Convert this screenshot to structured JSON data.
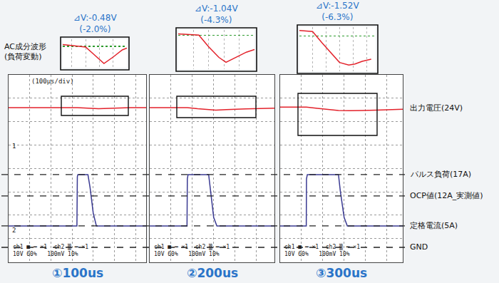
{
  "inset_caption": [
    "AC成分波形",
    "(負荷変動)"
  ],
  "voltage_label": {
    "text": "出力電圧(24V)",
    "value": 24
  },
  "reference_lines": [
    {
      "label": "パルス負荷(17A)",
      "value": 17
    },
    {
      "label": "OCP値(12A_実測値)",
      "value": 12
    },
    {
      "label": "定格電流(5A)",
      "value": 5
    },
    {
      "label": "GND",
      "value": 0
    }
  ],
  "chart_data": [
    {
      "type": "line",
      "title": "①100us",
      "header": "(100μs/div)",
      "channel_markers": [
        "1",
        "2"
      ],
      "footer": [
        "ch1 ■ ━ ×1  ch2 ▒ ━ ×1",
        "10V 60%   100mV 10%"
      ],
      "xlim": [
        0,
        1300
      ],
      "xticks": [
        0,
        200,
        400,
        600,
        800,
        1000,
        1200
      ],
      "ylim": [
        -3.5,
        40.3
      ],
      "yticks": [
        2.0,
        7.5,
        12.9,
        18.4,
        23.9,
        29.4,
        34.9
      ],
      "y2lim": [
        -42,
        38
      ],
      "tick_labels": false,
      "grid": true,
      "series": [
        {
          "color": "#e3222b",
          "axis": "y2",
          "x": [
            0,
            400,
            550,
            650,
            750,
            850,
            950,
            1050,
            1150,
            1300
          ],
          "values": [
            24.0,
            24.05,
            24.0,
            23.98,
            23.75,
            23.52,
            23.7,
            23.9,
            24.0,
            24.0
          ]
        },
        {
          "color": "#3a3a92",
          "x": [
            0,
            646,
            650,
            655,
            750,
            770,
            800,
            830,
            1300
          ],
          "values": [
            5,
            5,
            16.5,
            17,
            17,
            14,
            8,
            5,
            5
          ]
        }
      ],
      "inset": {
        "title": [
          "⊿V:-0.48V",
          "(-2.0%)"
        ],
        "color": "#e3222b",
        "xlim": [
          400,
          1100
        ],
        "xticks": [
          500,
          650,
          800,
          950
        ],
        "ylim": [
          -0.6,
          0.2
        ],
        "yticks": [
          0
        ],
        "x": [
          400,
          550,
          650,
          750,
          850,
          950,
          1050,
          1100
        ],
        "values": [
          0.05,
          0,
          -0.02,
          -0.25,
          -0.48,
          -0.3,
          -0.1,
          -0.05
        ]
      }
    },
    {
      "type": "line",
      "title": "②200us",
      "footer": [
        "ch1 ■ ━ ×1  ch2 ▒ ━ ×1",
        "10V 60%   100mV 10%"
      ],
      "xlim": [
        0,
        1170
      ],
      "xticks": [
        0,
        200,
        400,
        600,
        800,
        1000
      ],
      "ylim": [
        -3.5,
        40.3
      ],
      "yticks": [
        2.0,
        7.5,
        12.9,
        18.4,
        23.9,
        29.4,
        34.9
      ],
      "y2lim": [
        -42,
        38
      ],
      "tick_labels": false,
      "grid": true,
      "series": [
        {
          "color": "#e3222b",
          "axis": "y2",
          "x": [
            0,
            150,
            250,
            353,
            450,
            550,
            620,
            720,
            820,
            900,
            1170
          ],
          "values": [
            24.0,
            24.05,
            24.02,
            24.0,
            23.55,
            23.15,
            22.96,
            23.15,
            23.35,
            23.45,
            23.8
          ]
        },
        {
          "color": "#3a3a92",
          "x": [
            0,
            350,
            353,
            360,
            553,
            570,
            600,
            630,
            1170
          ],
          "values": [
            5,
            5,
            16,
            17,
            17,
            13,
            7,
            5,
            5
          ]
        }
      ],
      "inset": {
        "title": [
          "⊿V:-1.04V",
          "(-4.3%)"
        ],
        "color": "#e3222b",
        "xlim": [
          150,
          900
        ],
        "xticks": [
          300,
          450,
          600,
          750
        ],
        "ylim": [
          -1.3,
          0.2
        ],
        "yticks": [
          0
        ],
        "x": [
          150,
          250,
          353,
          450,
          550,
          620,
          720,
          820,
          900
        ],
        "values": [
          0.05,
          0.02,
          0,
          -0.45,
          -0.85,
          -1.04,
          -0.85,
          -0.65,
          -0.55
        ]
      }
    },
    {
      "type": "line",
      "title": "③300us",
      "footer": [
        "ch1 ■ ━ ×1  ch2 ▒ ━ ×1",
        "10V 60%   100mV 10%"
      ],
      "xlim": [
        0,
        1150
      ],
      "xticks": [
        0,
        200,
        400,
        600,
        800,
        1000
      ],
      "ylim": [
        -3.5,
        40.3
      ],
      "yticks": [
        2.0,
        7.5,
        12.9,
        18.4,
        23.9,
        29.4,
        34.9
      ],
      "y2lim": [
        -42,
        38
      ],
      "tick_labels": false,
      "grid": true,
      "series": [
        {
          "color": "#e3222b",
          "axis": "y2",
          "x": [
            0,
            100,
            247,
            350,
            450,
            547,
            650,
            720,
            800,
            900,
            1150
          ],
          "values": [
            24.25,
            24.25,
            24.2,
            23.7,
            23.25,
            22.8,
            22.68,
            22.73,
            22.85,
            22.95,
            23.3
          ]
        },
        {
          "color": "#3a3a92",
          "x": [
            0,
            245,
            247,
            255,
            547,
            565,
            600,
            630,
            1150
          ],
          "values": [
            5,
            5,
            16,
            17,
            17,
            13,
            7,
            5,
            5
          ]
        }
      ],
      "inset": {
        "title": [
          "⊿V:-1.52V",
          "(-6.3%)"
        ],
        "color": "#e3222b",
        "xlim": [
          100,
          950
        ],
        "xticks": [
          250,
          400,
          550,
          700,
          850
        ],
        "ylim": [
          -1.6,
          0.4
        ],
        "yticks": [
          0
        ],
        "x": [
          100,
          200,
          247,
          350,
          450,
          547,
          650,
          720,
          800,
          900
        ],
        "values": [
          0.25,
          0.22,
          0.2,
          -0.3,
          -0.75,
          -1.2,
          -1.32,
          -1.27,
          -1.15,
          -1.05
        ]
      }
    }
  ]
}
